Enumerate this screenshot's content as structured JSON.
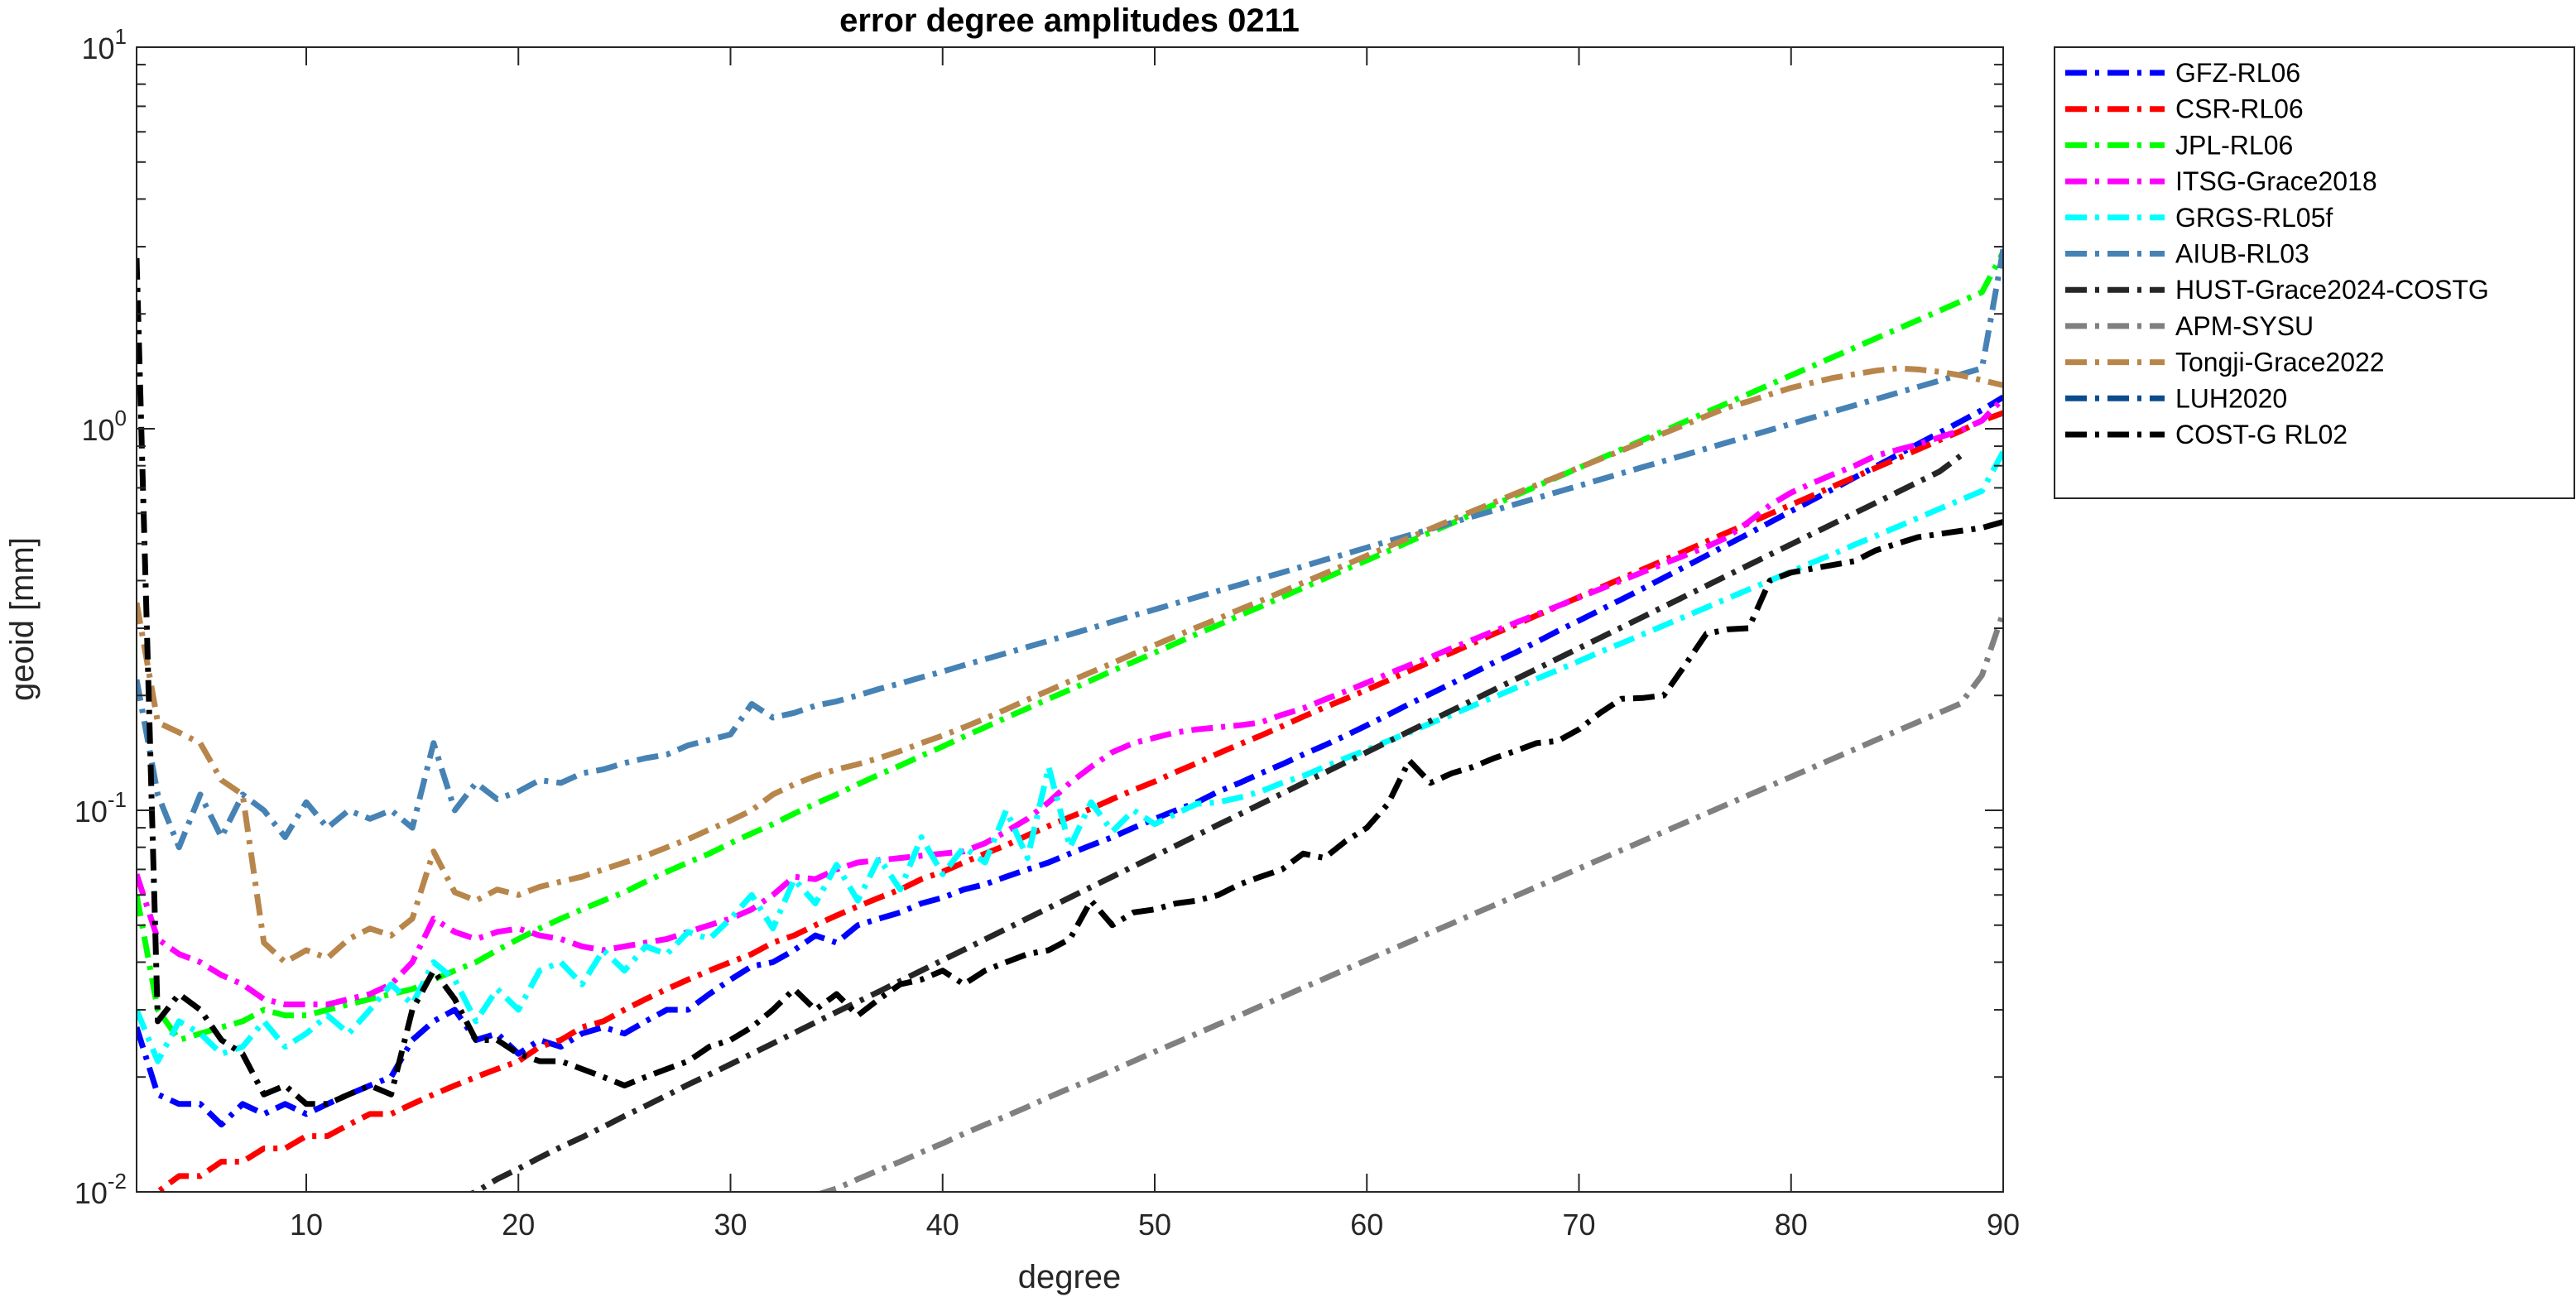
{
  "chart_data": {
    "type": "line",
    "title": "error degree amplitudes 0211",
    "xlabel": "degree",
    "ylabel": "geoid [mm]",
    "xlim": [
      2,
      90
    ],
    "ylim": [
      0.01,
      10
    ],
    "yscale": "log",
    "grid": false,
    "legend_position": "outside-right",
    "x_ticks": [
      "10",
      "20",
      "30",
      "40",
      "50",
      "60",
      "70",
      "80",
      "90"
    ],
    "y_ticks": [
      {
        "value": 0.01,
        "base": "10",
        "exp": "-2"
      },
      {
        "value": 0.1,
        "base": "10",
        "exp": "-1"
      },
      {
        "value": 1,
        "base": "10",
        "exp": "0"
      },
      {
        "value": 10,
        "base": "10",
        "exp": "1"
      }
    ],
    "series": [
      {
        "name": "GFZ-RL06",
        "color": "#0000ff",
        "dash": "dashdot",
        "start": 2,
        "values": [
          0.027,
          0.018,
          0.017,
          0.017,
          0.015,
          0.017,
          0.016,
          0.017,
          0.016,
          0.017,
          0.018,
          0.019,
          0.02,
          0.025,
          0.028,
          0.03,
          0.025,
          0.026,
          0.023,
          0.025,
          0.024,
          0.026,
          0.027,
          0.026,
          0.028,
          0.03,
          0.03,
          0.033,
          0.036,
          0.039,
          0.04,
          0.043,
          0.047,
          0.045,
          0.05,
          0.052,
          0.054,
          0.057,
          0.059,
          0.062,
          0.064,
          0.067,
          0.07,
          0.073,
          0.077,
          0.081,
          0.085,
          0.09,
          0.095,
          0.1,
          0.105,
          0.112,
          0.118,
          0.125,
          0.132,
          0.14,
          0.148,
          0.157,
          0.167,
          0.178,
          0.19,
          0.202,
          0.215,
          0.229,
          0.244,
          0.259,
          0.276,
          0.295,
          0.314,
          0.335,
          0.357,
          0.381,
          0.407,
          0.435,
          0.465,
          0.497,
          0.531,
          0.568,
          0.608,
          0.65,
          0.696,
          0.745,
          0.797,
          0.853,
          0.913,
          0.977,
          1.045,
          1.12,
          1.21
        ]
      },
      {
        "name": "CSR-RL06",
        "color": "#ff0000",
        "dash": "dashdot",
        "start": 2,
        "values": [
          0.009,
          0.01,
          0.011,
          0.011,
          0.012,
          0.012,
          0.013,
          0.013,
          0.014,
          0.014,
          0.015,
          0.016,
          0.016,
          0.017,
          0.018,
          0.019,
          0.02,
          0.021,
          0.022,
          0.024,
          0.025,
          0.027,
          0.028,
          0.03,
          0.032,
          0.034,
          0.036,
          0.038,
          0.04,
          0.042,
          0.045,
          0.047,
          0.05,
          0.053,
          0.056,
          0.059,
          0.062,
          0.066,
          0.069,
          0.073,
          0.077,
          0.081,
          0.086,
          0.091,
          0.096,
          0.101,
          0.107,
          0.113,
          0.119,
          0.126,
          0.133,
          0.141,
          0.149,
          0.157,
          0.166,
          0.176,
          0.186,
          0.196,
          0.207,
          0.219,
          0.232,
          0.245,
          0.259,
          0.274,
          0.29,
          0.306,
          0.324,
          0.342,
          0.362,
          0.383,
          0.405,
          0.428,
          0.452,
          0.478,
          0.506,
          0.535,
          0.565,
          0.598,
          0.632,
          0.668,
          0.707,
          0.747,
          0.79,
          0.835,
          0.883,
          0.934,
          0.987,
          1.05,
          1.1
        ]
      },
      {
        "name": "JPL-RL06",
        "color": "#00ff00",
        "dash": "dashdot",
        "start": 2,
        "values": [
          0.06,
          0.03,
          0.025,
          0.026,
          0.027,
          0.028,
          0.03,
          0.029,
          0.029,
          0.03,
          0.031,
          0.032,
          0.033,
          0.034,
          0.036,
          0.038,
          0.04,
          0.043,
          0.046,
          0.049,
          0.052,
          0.055,
          0.058,
          0.061,
          0.065,
          0.069,
          0.073,
          0.077,
          0.082,
          0.087,
          0.092,
          0.098,
          0.104,
          0.11,
          0.117,
          0.124,
          0.131,
          0.139,
          0.147,
          0.156,
          0.165,
          0.175,
          0.185,
          0.196,
          0.207,
          0.219,
          0.232,
          0.245,
          0.259,
          0.274,
          0.29,
          0.306,
          0.324,
          0.342,
          0.362,
          0.383,
          0.405,
          0.428,
          0.452,
          0.478,
          0.506,
          0.535,
          0.565,
          0.598,
          0.632,
          0.668,
          0.707,
          0.747,
          0.79,
          0.835,
          0.883,
          0.934,
          0.987,
          1.044,
          1.104,
          1.167,
          1.234,
          1.305,
          1.38,
          1.459,
          1.543,
          1.631,
          1.725,
          1.824,
          1.928,
          2.039,
          2.156,
          2.28,
          2.9
        ]
      },
      {
        "name": "ITSG-Grace2018",
        "color": "#ff00ff",
        "dash": "dashdot",
        "start": 2,
        "values": [
          0.068,
          0.046,
          0.042,
          0.04,
          0.037,
          0.035,
          0.032,
          0.031,
          0.031,
          0.031,
          0.032,
          0.033,
          0.035,
          0.04,
          0.052,
          0.048,
          0.046,
          0.048,
          0.049,
          0.047,
          0.046,
          0.044,
          0.043,
          0.044,
          0.045,
          0.046,
          0.048,
          0.05,
          0.052,
          0.055,
          0.06,
          0.067,
          0.066,
          0.07,
          0.073,
          0.074,
          0.075,
          0.076,
          0.077,
          0.078,
          0.082,
          0.088,
          0.095,
          0.105,
          0.118,
          0.13,
          0.142,
          0.15,
          0.155,
          0.16,
          0.163,
          0.165,
          0.167,
          0.17,
          0.178,
          0.185,
          0.195,
          0.205,
          0.216,
          0.228,
          0.24,
          0.252,
          0.266,
          0.28,
          0.295,
          0.31,
          0.326,
          0.343,
          0.361,
          0.38,
          0.4,
          0.421,
          0.443,
          0.466,
          0.49,
          0.52,
          0.57,
          0.63,
          0.68,
          0.72,
          0.76,
          0.8,
          0.85,
          0.88,
          0.91,
          0.95,
          0.99,
          1.05,
          1.2
        ]
      },
      {
        "name": "GRGS-RL05f",
        "color": "#00ffff",
        "dash": "dashdot",
        "start": 2,
        "values": [
          0.03,
          0.022,
          0.028,
          0.026,
          0.023,
          0.024,
          0.028,
          0.024,
          0.026,
          0.029,
          0.026,
          0.03,
          0.035,
          0.031,
          0.04,
          0.036,
          0.028,
          0.034,
          0.03,
          0.038,
          0.04,
          0.035,
          0.043,
          0.038,
          0.044,
          0.042,
          0.048,
          0.046,
          0.052,
          0.06,
          0.049,
          0.066,
          0.057,
          0.072,
          0.058,
          0.075,
          0.062,
          0.085,
          0.068,
          0.08,
          0.073,
          0.1,
          0.075,
          0.13,
          0.08,
          0.105,
          0.088,
          0.1,
          0.092,
          0.098,
          0.104,
          0.105,
          0.108,
          0.112,
          0.118,
          0.123,
          0.13,
          0.137,
          0.144,
          0.152,
          0.16,
          0.169,
          0.178,
          0.188,
          0.198,
          0.209,
          0.221,
          0.233,
          0.246,
          0.26,
          0.274,
          0.289,
          0.305,
          0.322,
          0.34,
          0.359,
          0.379,
          0.4,
          0.422,
          0.446,
          0.47,
          0.497,
          0.524,
          0.553,
          0.584,
          0.617,
          0.651,
          0.687,
          0.87
        ]
      },
      {
        "name": "AIUB-RL03",
        "color": "#4682b4",
        "dash": "dashdot",
        "start": 2,
        "values": [
          0.22,
          0.11,
          0.08,
          0.11,
          0.085,
          0.11,
          0.1,
          0.085,
          0.105,
          0.09,
          0.1,
          0.095,
          0.1,
          0.09,
          0.15,
          0.1,
          0.118,
          0.107,
          0.112,
          0.12,
          0.118,
          0.125,
          0.128,
          0.133,
          0.137,
          0.14,
          0.148,
          0.153,
          0.158,
          0.19,
          0.175,
          0.18,
          0.188,
          0.193,
          0.2,
          0.208,
          0.215,
          0.223,
          0.231,
          0.24,
          0.249,
          0.258,
          0.268,
          0.278,
          0.289,
          0.3,
          0.312,
          0.324,
          0.336,
          0.349,
          0.362,
          0.376,
          0.39,
          0.405,
          0.42,
          0.436,
          0.453,
          0.47,
          0.488,
          0.507,
          0.526,
          0.546,
          0.567,
          0.589,
          0.611,
          0.634,
          0.658,
          0.683,
          0.709,
          0.736,
          0.764,
          0.793,
          0.823,
          0.854,
          0.887,
          0.921,
          0.956,
          0.992,
          1.03,
          1.069,
          1.11,
          1.152,
          1.196,
          1.241,
          1.288,
          1.337,
          1.388,
          1.441,
          2.95
        ]
      },
      {
        "name": "HUST-Grace2024-COSTG",
        "color": "#262626",
        "dash": "dashdot",
        "start": 17,
        "values": [
          0.0095,
          0.01,
          0.0108,
          0.0115,
          0.0123,
          0.0131,
          0.0139,
          0.0148,
          0.0158,
          0.0168,
          0.0179,
          0.0191,
          0.0203,
          0.0216,
          0.023,
          0.0245,
          0.0261,
          0.0278,
          0.0296,
          0.0315,
          0.0335,
          0.0357,
          0.038,
          0.0405,
          0.0431,
          0.0459,
          0.0489,
          0.0521,
          0.0555,
          0.0591,
          0.0629,
          0.067,
          0.0713,
          0.0759,
          0.0808,
          0.0861,
          0.0917,
          0.0976,
          0.1039,
          0.1106,
          0.1178,
          0.1254,
          0.1335,
          0.1421,
          0.1513,
          0.1611,
          0.1715,
          0.1826,
          0.1944,
          0.207,
          0.2204,
          0.2346,
          0.2498,
          0.266,
          0.2832,
          0.3015,
          0.321,
          0.3418,
          0.3639,
          0.3875,
          0.4126,
          0.4393,
          0.4677,
          0.498,
          0.5302,
          0.5645,
          0.601,
          0.64,
          0.6814,
          0.7255,
          0.7725,
          0.85
        ]
      },
      {
        "name": "APM-SYSU",
        "color": "#808080",
        "dash": "dashdot",
        "start": 34,
        "values": [
          0.0098,
          0.0102,
          0.0108,
          0.0114,
          0.012,
          0.0127,
          0.0134,
          0.0142,
          0.015,
          0.0158,
          0.0167,
          0.0177,
          0.0187,
          0.0197,
          0.0208,
          0.022,
          0.0233,
          0.0246,
          0.026,
          0.0275,
          0.029,
          0.0307,
          0.0324,
          0.0343,
          0.0362,
          0.0383,
          0.0405,
          0.0428,
          0.0452,
          0.0478,
          0.0505,
          0.0534,
          0.0564,
          0.0596,
          0.063,
          0.0666,
          0.0704,
          0.0744,
          0.0786,
          0.0831,
          0.0878,
          0.0928,
          0.0981,
          0.1037,
          0.1096,
          0.1158,
          0.1224,
          0.1294,
          0.1368,
          0.1445,
          0.1528,
          0.1615,
          0.1706,
          0.1803,
          0.1906,
          0.226,
          0.33
        ]
      },
      {
        "name": "Tongji-Grace2022",
        "color": "#b8864b",
        "dash": "dashdot",
        "start": 2,
        "values": [
          0.35,
          0.17,
          0.16,
          0.15,
          0.12,
          0.11,
          0.045,
          0.04,
          0.043,
          0.041,
          0.046,
          0.049,
          0.047,
          0.052,
          0.078,
          0.061,
          0.058,
          0.062,
          0.06,
          0.063,
          0.065,
          0.067,
          0.07,
          0.073,
          0.076,
          0.08,
          0.084,
          0.089,
          0.094,
          0.1,
          0.11,
          0.117,
          0.123,
          0.128,
          0.132,
          0.137,
          0.143,
          0.15,
          0.157,
          0.165,
          0.174,
          0.184,
          0.195,
          0.206,
          0.218,
          0.23,
          0.243,
          0.257,
          0.271,
          0.286,
          0.302,
          0.318,
          0.336,
          0.354,
          0.374,
          0.395,
          0.417,
          0.44,
          0.465,
          0.491,
          0.518,
          0.547,
          0.577,
          0.609,
          0.641,
          0.676,
          0.712,
          0.75,
          0.791,
          0.833,
          0.877,
          0.924,
          0.973,
          1.025,
          1.08,
          1.137,
          1.18,
          1.23,
          1.28,
          1.32,
          1.36,
          1.39,
          1.42,
          1.44,
          1.43,
          1.41,
          1.38,
          1.34,
          1.3
        ]
      },
      {
        "name": "LUH2020",
        "color": "#0a4c8c",
        "dash": "dashdot",
        "start": 2,
        "values": []
      },
      {
        "name": "COST-G RL02",
        "color": "#000000",
        "dash": "dashdot",
        "start": 2,
        "values": [
          2.8,
          0.028,
          0.033,
          0.03,
          0.025,
          0.023,
          0.018,
          0.019,
          0.017,
          0.017,
          0.018,
          0.019,
          0.018,
          0.03,
          0.038,
          0.032,
          0.025,
          0.025,
          0.023,
          0.022,
          0.022,
          0.021,
          0.02,
          0.019,
          0.02,
          0.021,
          0.022,
          0.024,
          0.025,
          0.027,
          0.03,
          0.034,
          0.03,
          0.033,
          0.029,
          0.032,
          0.035,
          0.036,
          0.038,
          0.035,
          0.038,
          0.04,
          0.042,
          0.043,
          0.046,
          0.058,
          0.05,
          0.054,
          0.055,
          0.057,
          0.058,
          0.06,
          0.064,
          0.067,
          0.07,
          0.077,
          0.075,
          0.083,
          0.09,
          0.104,
          0.135,
          0.118,
          0.125,
          0.13,
          0.137,
          0.143,
          0.15,
          0.152,
          0.163,
          0.18,
          0.196,
          0.197,
          0.2,
          0.24,
          0.29,
          0.298,
          0.3,
          0.4,
          0.42,
          0.43,
          0.44,
          0.45,
          0.48,
          0.5,
          0.52,
          0.53,
          0.54,
          0.55,
          0.57
        ]
      }
    ]
  }
}
